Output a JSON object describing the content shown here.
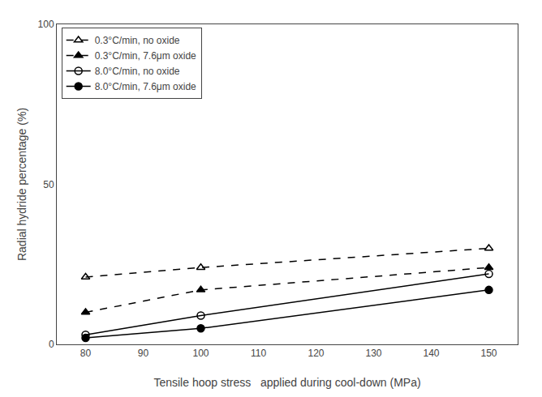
{
  "chart_data": {
    "type": "line",
    "xlabel": "Tensile hoop stress   applied during cool-down (MPa)",
    "ylabel": "Radial hydride percentage (%)",
    "series": [
      {
        "name": "0.3°C/min, no oxide",
        "x": [
          80,
          100,
          150
        ],
        "values": [
          21,
          24,
          30
        ],
        "color": "black",
        "line_style": "dashed",
        "marker": "triangle-up-open"
      },
      {
        "name": "0.3°C/min, 7.6μm oxide",
        "x": [
          80,
          100,
          150
        ],
        "values": [
          10,
          17,
          24
        ],
        "color": "black",
        "line_style": "dashed",
        "marker": "triangle-up"
      },
      {
        "name": "8.0°C/min, no oxide",
        "x": [
          80,
          100,
          150
        ],
        "values": [
          3,
          9,
          22
        ],
        "color": "black",
        "line_style": "solid",
        "marker": "circle-open"
      },
      {
        "name": "8.0°C/min, 7.6μm oxide",
        "x": [
          80,
          100,
          150
        ],
        "values": [
          2,
          5,
          17
        ],
        "color": "black",
        "line_style": "solid",
        "marker": "circle"
      }
    ],
    "xlim": [
      75,
      155
    ],
    "ylim": [
      0,
      100
    ],
    "xticks": [
      80,
      90,
      100,
      110,
      120,
      130,
      140,
      150
    ],
    "yticks": [
      0,
      50,
      100
    ],
    "grid": false,
    "legend": "upper left"
  }
}
